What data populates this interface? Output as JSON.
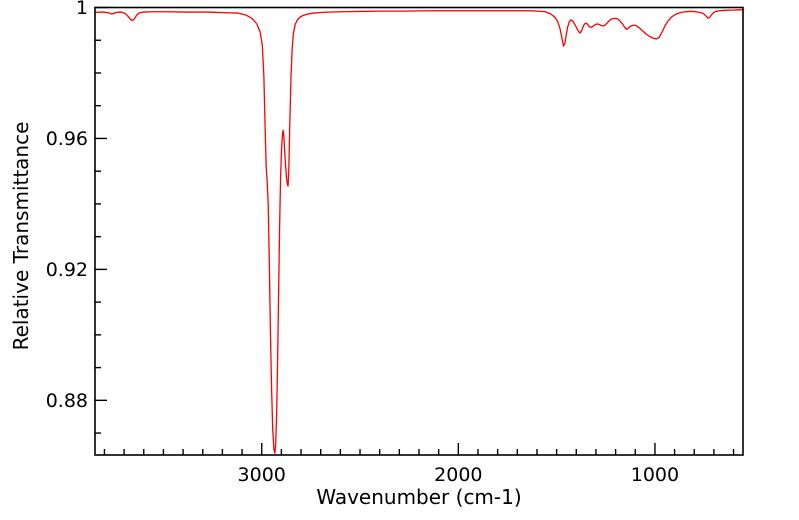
{
  "figure": {
    "background": "#ffffff",
    "axis_color": "#000000",
    "text_color": "#000000"
  },
  "chart_data": {
    "type": "line",
    "title": "",
    "xlabel": "Wavenumber (cm-1)",
    "ylabel": "Relative Transmittance",
    "grid": false,
    "legend": "none",
    "x_axis": {
      "min": 552,
      "max": 3848,
      "inverted": true,
      "major_ticks": [
        3000,
        2000,
        1000
      ],
      "major_tick_labels": [
        "3000",
        "2000",
        "1000"
      ],
      "minor_tick_step": 100,
      "minor_tick_range": [
        600,
        3800
      ]
    },
    "y_axis": {
      "min": 0.8633,
      "max": 1.0,
      "major_ticks": [
        1,
        0.96,
        0.92,
        0.88
      ],
      "major_tick_labels": [
        "1",
        "0.96",
        "0.92",
        "0.88"
      ],
      "minor_tick_step": 0.01,
      "minor_tick_range": [
        0.87,
        0.99
      ]
    },
    "series": [
      {
        "name": "ir-spectrum",
        "color": "#ff0000",
        "line_width": 1.3,
        "points": [
          [
            3848,
            0.9985
          ],
          [
            3810,
            0.9986
          ],
          [
            3780,
            0.9984
          ],
          [
            3762,
            0.998
          ],
          [
            3752,
            0.9982
          ],
          [
            3740,
            0.9985
          ],
          [
            3715,
            0.9986
          ],
          [
            3695,
            0.9982
          ],
          [
            3680,
            0.9973
          ],
          [
            3668,
            0.9964
          ],
          [
            3658,
            0.996
          ],
          [
            3648,
            0.9965
          ],
          [
            3636,
            0.9977
          ],
          [
            3622,
            0.9984
          ],
          [
            3600,
            0.9986
          ],
          [
            3560,
            0.9987
          ],
          [
            3480,
            0.9987
          ],
          [
            3380,
            0.9986
          ],
          [
            3280,
            0.9986
          ],
          [
            3180,
            0.9984
          ],
          [
            3120,
            0.9983
          ],
          [
            3080,
            0.9977
          ],
          [
            3050,
            0.9967
          ],
          [
            3025,
            0.995
          ],
          [
            3008,
            0.9925
          ],
          [
            2997,
            0.9885
          ],
          [
            2989,
            0.979
          ],
          [
            2983,
            0.964
          ],
          [
            2977,
            0.951
          ],
          [
            2972,
            0.9465
          ],
          [
            2967,
            0.94
          ],
          [
            2962,
            0.924
          ],
          [
            2956,
            0.902
          ],
          [
            2950,
            0.884
          ],
          [
            2944,
            0.871
          ],
          [
            2938,
            0.865
          ],
          [
            2933,
            0.8638
          ],
          [
            2929,
            0.8665
          ],
          [
            2924,
            0.876
          ],
          [
            2919,
            0.893
          ],
          [
            2914,
            0.913
          ],
          [
            2909,
            0.933
          ],
          [
            2904,
            0.948
          ],
          [
            2899,
            0.957
          ],
          [
            2894,
            0.9615
          ],
          [
            2891,
            0.9625
          ],
          [
            2888,
            0.961
          ],
          [
            2884,
            0.957
          ],
          [
            2879,
            0.952
          ],
          [
            2874,
            0.948
          ],
          [
            2869,
            0.9458
          ],
          [
            2866,
            0.9455
          ],
          [
            2862,
            0.951
          ],
          [
            2857,
            0.965
          ],
          [
            2851,
            0.979
          ],
          [
            2845,
            0.9875
          ],
          [
            2839,
            0.992
          ],
          [
            2830,
            0.9948
          ],
          [
            2818,
            0.9963
          ],
          [
            2804,
            0.9971
          ],
          [
            2788,
            0.9976
          ],
          [
            2766,
            0.998
          ],
          [
            2736,
            0.9983
          ],
          [
            2690,
            0.9985
          ],
          [
            2600,
            0.9987
          ],
          [
            2500,
            0.9988
          ],
          [
            2400,
            0.9989
          ],
          [
            2280,
            0.9989
          ],
          [
            2150,
            0.999
          ],
          [
            2000,
            0.999
          ],
          [
            1850,
            0.999
          ],
          [
            1720,
            0.999
          ],
          [
            1640,
            0.999
          ],
          [
            1597,
            0.9989
          ],
          [
            1558,
            0.9987
          ],
          [
            1532,
            0.9981
          ],
          [
            1512,
            0.9972
          ],
          [
            1496,
            0.9959
          ],
          [
            1483,
            0.9936
          ],
          [
            1473,
            0.9906
          ],
          [
            1465,
            0.9882
          ],
          [
            1459,
            0.9889
          ],
          [
            1452,
            0.9912
          ],
          [
            1444,
            0.994
          ],
          [
            1436,
            0.9956
          ],
          [
            1428,
            0.9962
          ],
          [
            1419,
            0.9959
          ],
          [
            1409,
            0.995
          ],
          [
            1398,
            0.9938
          ],
          [
            1389,
            0.9927
          ],
          [
            1381,
            0.9922
          ],
          [
            1373,
            0.9929
          ],
          [
            1363,
            0.9945
          ],
          [
            1354,
            0.9952
          ],
          [
            1344,
            0.995
          ],
          [
            1334,
            0.9942
          ],
          [
            1324,
            0.9939
          ],
          [
            1314,
            0.9943
          ],
          [
            1303,
            0.9948
          ],
          [
            1292,
            0.995
          ],
          [
            1280,
            0.9947
          ],
          [
            1268,
            0.9944
          ],
          [
            1256,
            0.9945
          ],
          [
            1244,
            0.9952
          ],
          [
            1232,
            0.996
          ],
          [
            1220,
            0.9965
          ],
          [
            1206,
            0.9967
          ],
          [
            1192,
            0.9966
          ],
          [
            1178,
            0.9959
          ],
          [
            1164,
            0.9949
          ],
          [
            1153,
            0.9939
          ],
          [
            1145,
            0.9933
          ],
          [
            1137,
            0.9936
          ],
          [
            1127,
            0.9942
          ],
          [
            1116,
            0.9945
          ],
          [
            1105,
            0.9946
          ],
          [
            1094,
            0.9944
          ],
          [
            1080,
            0.9938
          ],
          [
            1063,
            0.9929
          ],
          [
            1045,
            0.9919
          ],
          [
            1026,
            0.9911
          ],
          [
            1008,
            0.9906
          ],
          [
            992,
            0.9904
          ],
          [
            978,
            0.9909
          ],
          [
            963,
            0.9926
          ],
          [
            948,
            0.9945
          ],
          [
            933,
            0.9959
          ],
          [
            917,
            0.997
          ],
          [
            901,
            0.9977
          ],
          [
            884,
            0.9982
          ],
          [
            866,
            0.9985
          ],
          [
            845,
            0.9987
          ],
          [
            824,
            0.9988
          ],
          [
            802,
            0.9988
          ],
          [
            782,
            0.9986
          ],
          [
            764,
            0.9984
          ],
          [
            750,
            0.998
          ],
          [
            740,
            0.9974
          ],
          [
            731,
            0.9968
          ],
          [
            723,
            0.9969
          ],
          [
            714,
            0.9976
          ],
          [
            703,
            0.9984
          ],
          [
            690,
            0.9988
          ],
          [
            672,
            0.999
          ],
          [
            650,
            0.9991
          ],
          [
            625,
            0.9992
          ],
          [
            600,
            0.9992
          ],
          [
            575,
            0.9993
          ],
          [
            552,
            0.9993
          ]
        ]
      }
    ]
  }
}
